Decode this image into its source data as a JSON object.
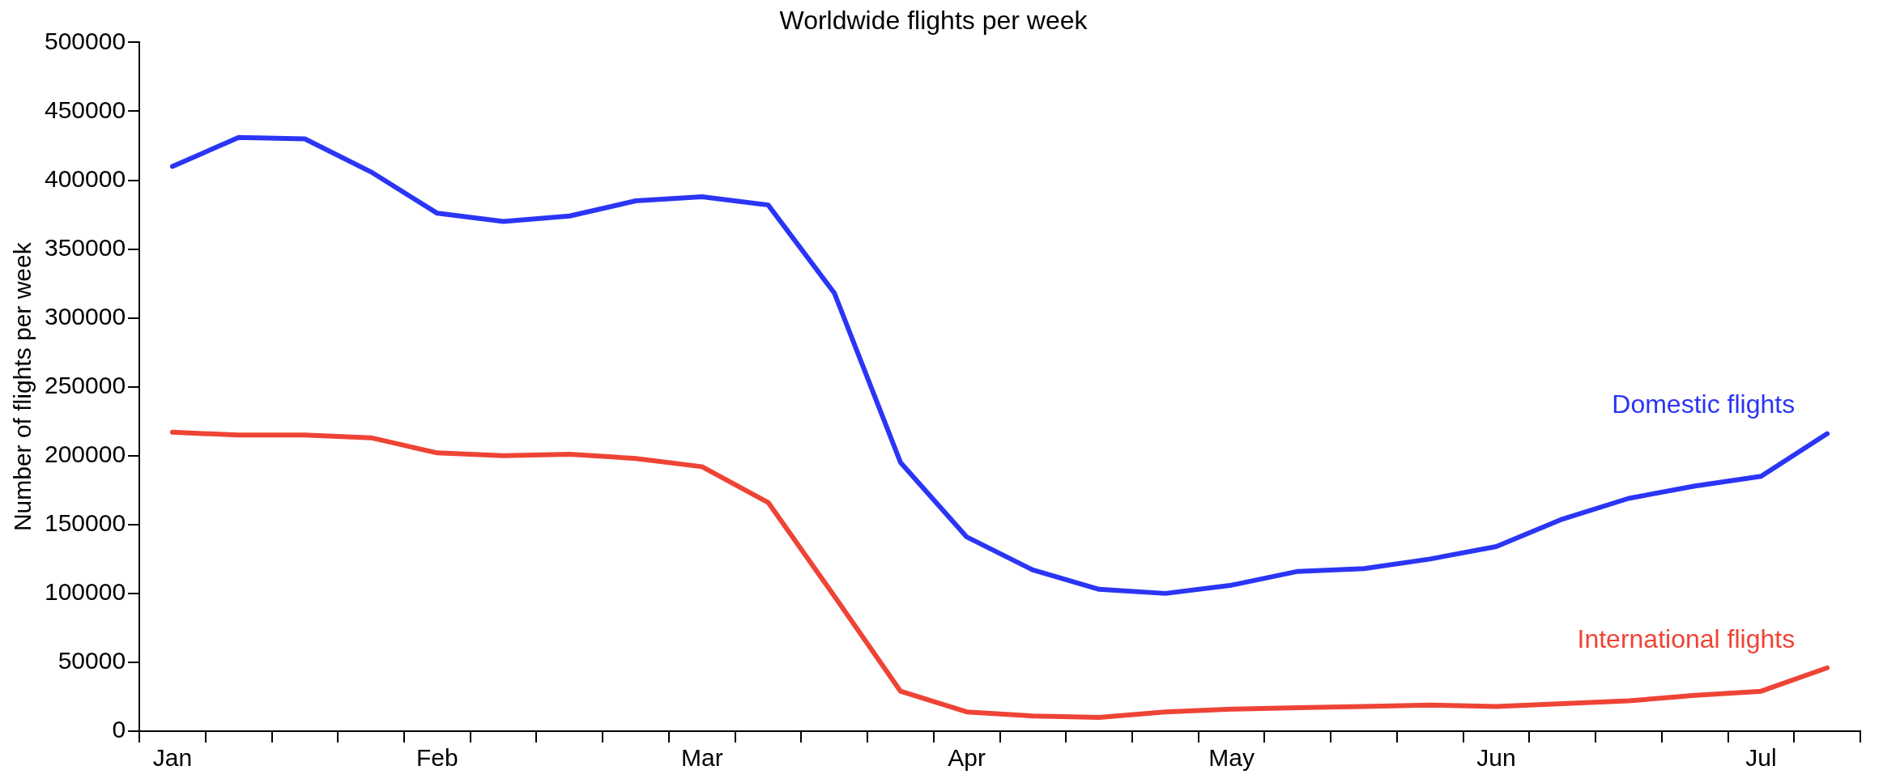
{
  "chart_data": {
    "type": "line",
    "title": "Worldwide flights per week",
    "ylabel": "Number of flights per week",
    "categories": [
      "Jan",
      null,
      null,
      null,
      "Feb",
      null,
      null,
      null,
      "Mar",
      null,
      null,
      null,
      "Apr",
      null,
      null,
      null,
      "May",
      null,
      null,
      null,
      "Jun",
      null,
      null,
      null,
      "Jul",
      null
    ],
    "series": [
      {
        "name": "Domestic flights",
        "color": "#2b35f5",
        "values": [
          410000,
          431000,
          430000,
          406000,
          376000,
          370000,
          374000,
          385000,
          388000,
          382000,
          318000,
          195000,
          141000,
          117000,
          103000,
          100000,
          106000,
          116000,
          118000,
          125000,
          134000,
          154000,
          169000,
          178000,
          185000,
          216000
        ]
      },
      {
        "name": "International flights",
        "color": "#ee4435",
        "values": [
          217000,
          215000,
          215000,
          213000,
          202000,
          200000,
          201000,
          198000,
          192000,
          166000,
          98000,
          29000,
          14000,
          11000,
          10000,
          14000,
          16000,
          17000,
          18000,
          19000,
          18000,
          20000,
          22000,
          26000,
          29000,
          46000
        ]
      }
    ],
    "ylim": [
      0,
      500000
    ],
    "yticks": [
      0,
      50000,
      100000,
      150000,
      200000,
      250000,
      300000,
      350000,
      400000,
      450000,
      500000
    ],
    "grid": false,
    "legend": false,
    "marker": "none",
    "line_style": "solid"
  }
}
